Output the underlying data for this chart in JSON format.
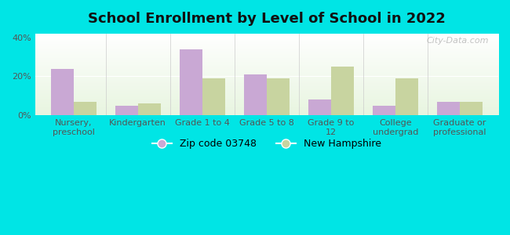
{
  "title": "School Enrollment by Level of School in 2022",
  "categories": [
    "Nursery,\npreschool",
    "Kindergarten",
    "Grade 1 to 4",
    "Grade 5 to 8",
    "Grade 9 to\n12",
    "College\nundergrad",
    "Graduate or\nprofessional"
  ],
  "zip_values": [
    24,
    5,
    34,
    21,
    8,
    5,
    7
  ],
  "nh_values": [
    7,
    6,
    19,
    19,
    25,
    19,
    7
  ],
  "zip_color": "#c9a8d4",
  "nh_color": "#c8d4a0",
  "background_outer": "#00e5e5",
  "background_inner_top": "#e8f5e0",
  "background_inner_bottom": "#ffffff",
  "ylim": [
    0,
    42
  ],
  "yticks": [
    0,
    20,
    40
  ],
  "ytick_labels": [
    "0%",
    "20%",
    "40%"
  ],
  "zip_label": "Zip code 03748",
  "nh_label": "New Hampshire",
  "title_fontsize": 13,
  "tick_fontsize": 8,
  "legend_fontsize": 9,
  "bar_width": 0.35,
  "watermark": "City-Data.com"
}
